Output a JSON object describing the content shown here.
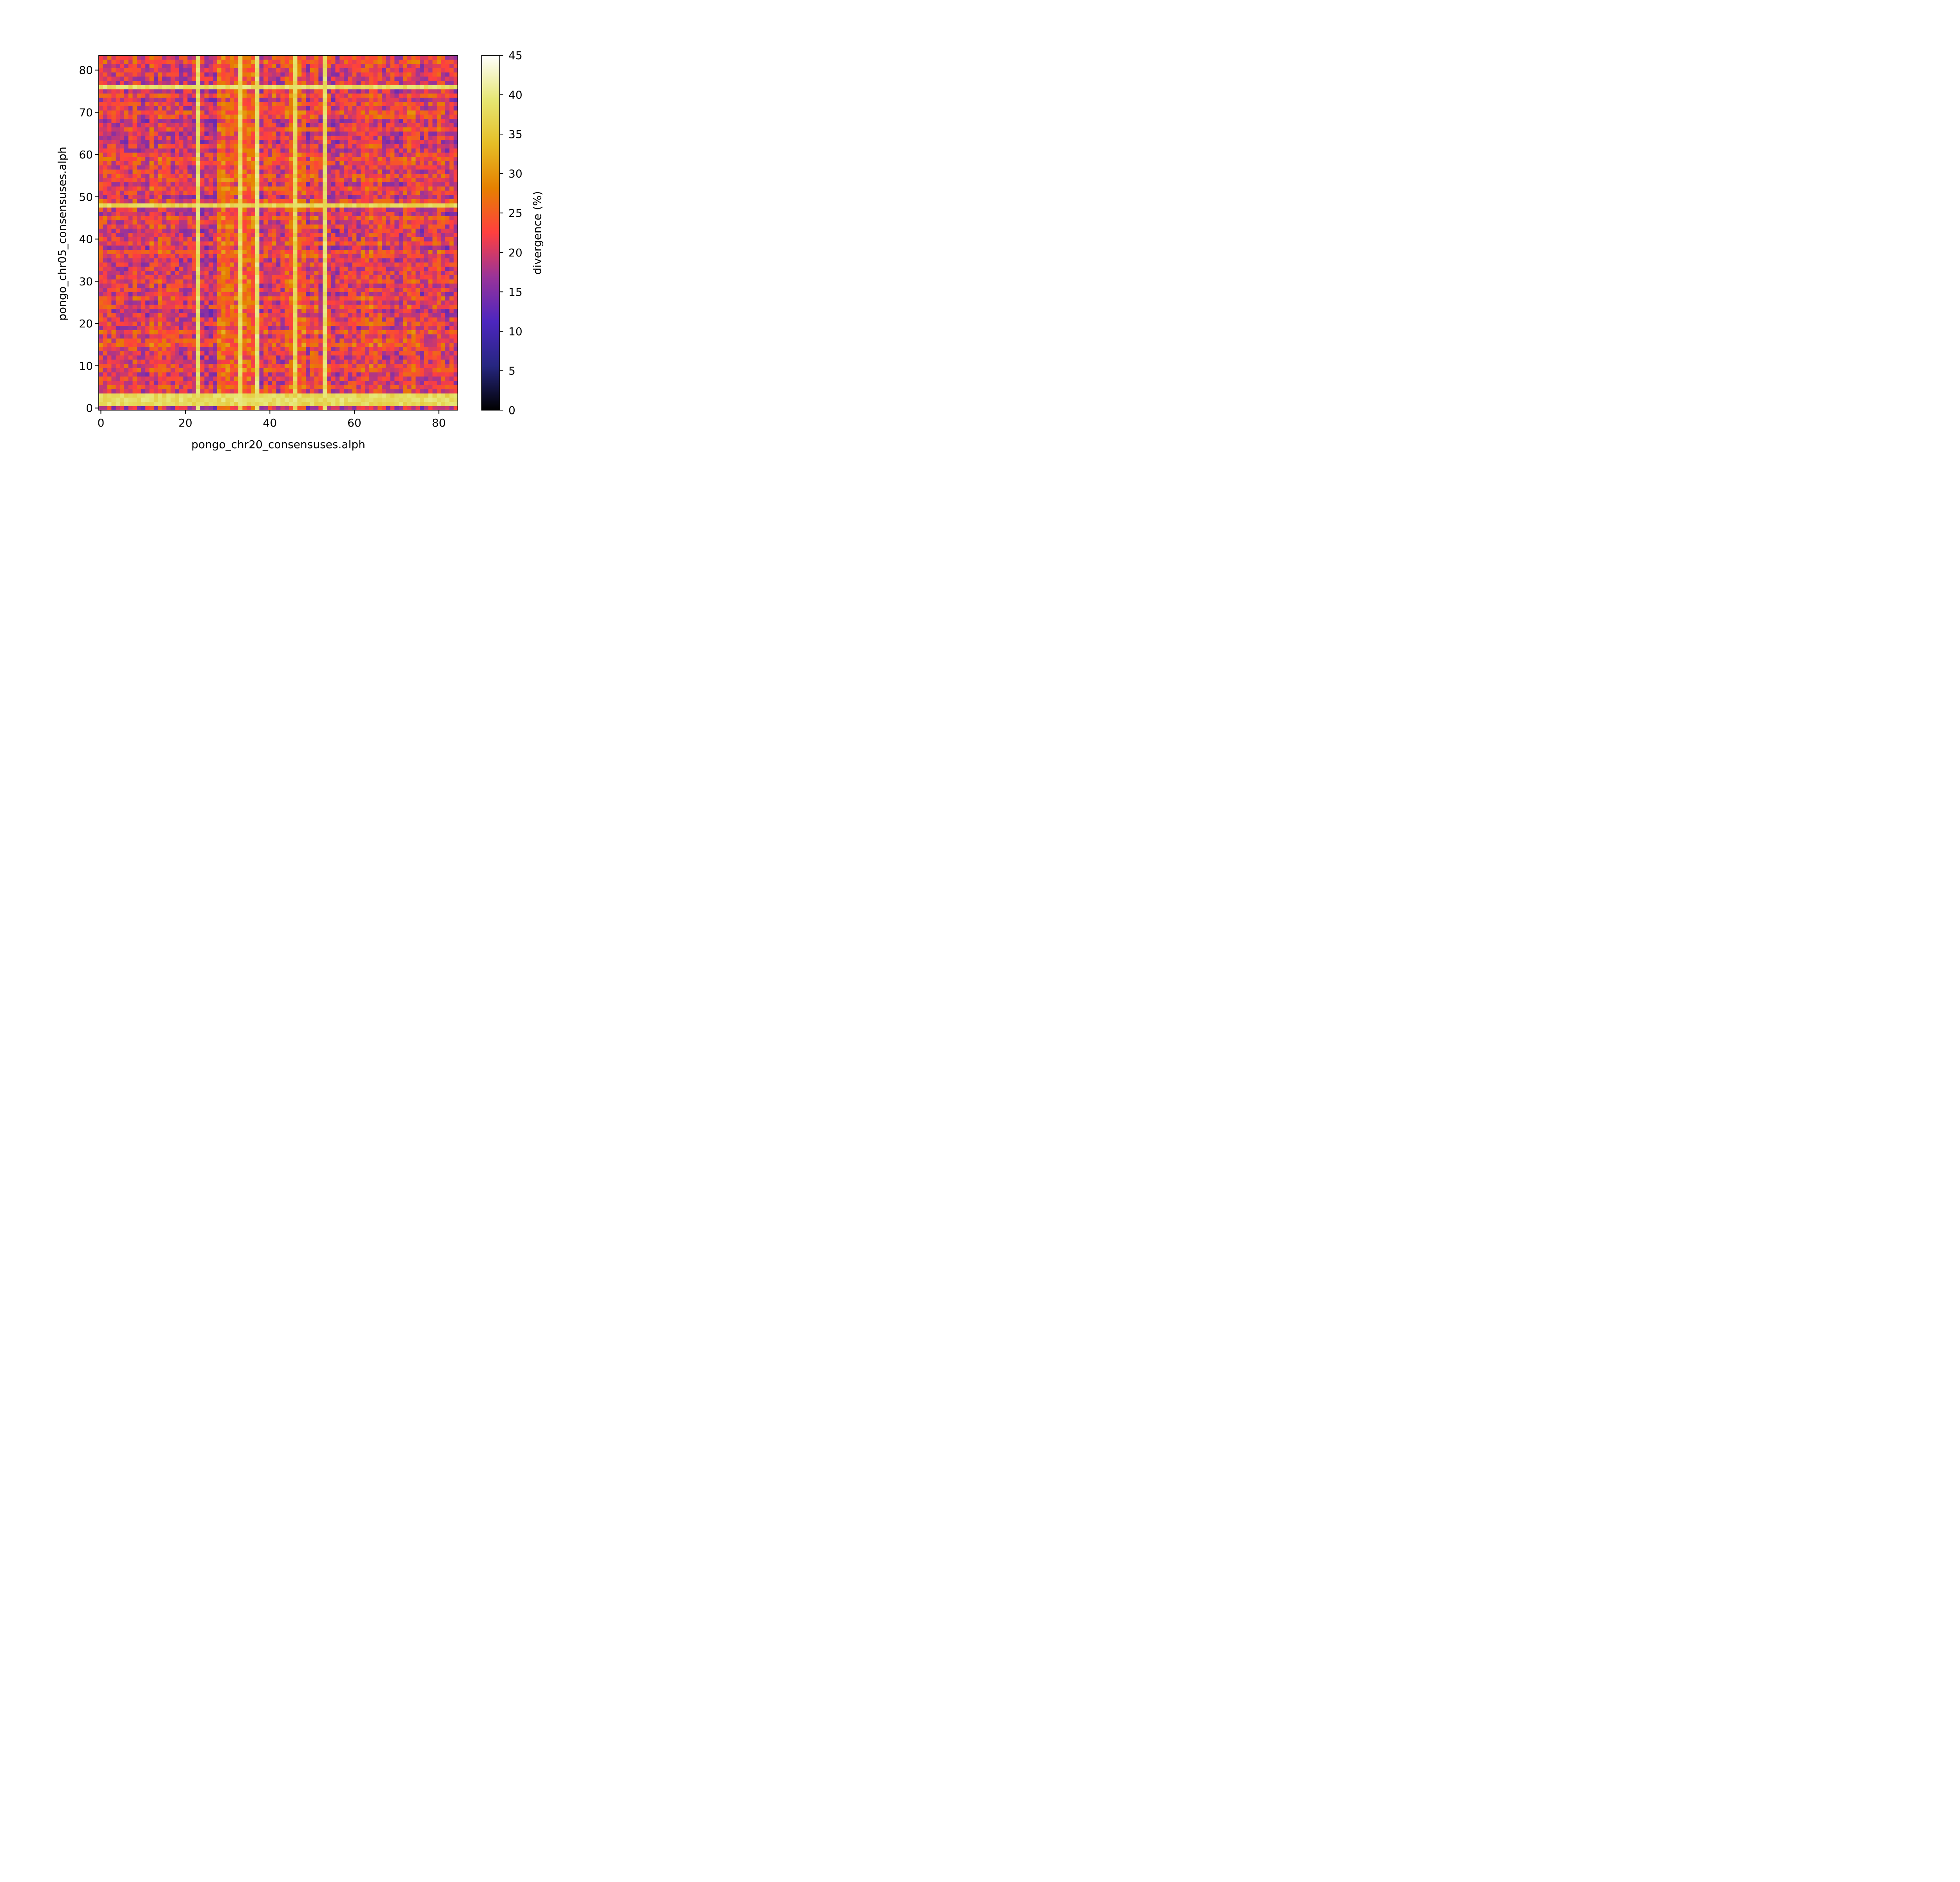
{
  "chart_data": {
    "type": "heatmap",
    "title": "",
    "xlabel": "pongo_chr20_consensuses.alph",
    "ylabel": "pongo_chr05_consensuses.alph",
    "xlim": [
      -0.5,
      84.5
    ],
    "ylim": [
      -0.5,
      83.5
    ],
    "n_cols": 85,
    "n_rows": 84,
    "x_ticks": [
      0,
      20,
      40,
      60,
      80
    ],
    "y_ticks": [
      0,
      10,
      20,
      30,
      40,
      50,
      60,
      70,
      80
    ],
    "colormap": "CMRmap",
    "colorbar": {
      "label": "divergence (%)",
      "range": [
        0,
        45
      ],
      "ticks": [
        0,
        5,
        10,
        15,
        20,
        25,
        30,
        35,
        40,
        45
      ],
      "stops": [
        "#000000",
        "#262680",
        "#4d26bf",
        "#993399",
        "#ff3f3f",
        "#e68000",
        "#e6be26",
        "#e6e673",
        "#ffffff"
      ]
    },
    "high_divergence_columns": [
      23,
      33,
      37,
      46,
      53
    ],
    "high_divergence_rows": [
      1,
      2,
      3,
      48,
      76
    ],
    "summary": {
      "min_divergence": 12,
      "max_divergence": 43,
      "typical_range": [
        15,
        28
      ]
    }
  }
}
